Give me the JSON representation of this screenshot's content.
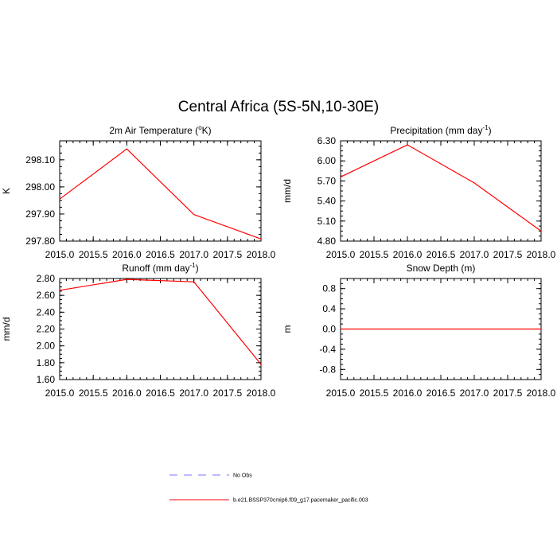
{
  "title": "Central Africa (5S-5N,10-30E)",
  "chart_data": [
    {
      "type": "line",
      "title": "2m Air Temperature (°K)",
      "title_parts": [
        "2m Air Temperature (",
        "o",
        "K)"
      ],
      "ylabel": "K",
      "xlim": [
        2015.0,
        2018.0
      ],
      "ylim": [
        297.8,
        298.17
      ],
      "xticks": [
        "2015.0",
        "2015.5",
        "2016.0",
        "2016.5",
        "2017.0",
        "2017.5",
        "2018.0"
      ],
      "yticks": [
        "297.80",
        "297.90",
        "298.00",
        "298.10"
      ],
      "grid": false,
      "series": [
        {
          "name": "b.e21.BSSP370cmip6.f09_g17.pacemaker_pacific.003",
          "x": [
            2015,
            2016,
            2017,
            2018
          ],
          "y": [
            297.955,
            298.14,
            297.898,
            297.808
          ]
        }
      ]
    },
    {
      "type": "line",
      "title": "Precipitation (mm day-1)",
      "title_parts": [
        "Precipitation (mm day",
        "-1",
        ")"
      ],
      "ylabel": "mm/d",
      "xlim": [
        2015.0,
        2018.0
      ],
      "ylim": [
        4.8,
        6.3
      ],
      "xticks": [
        "2015.0",
        "2015.5",
        "2016.0",
        "2016.5",
        "2017.0",
        "2017.5",
        "2018.0"
      ],
      "yticks": [
        "4.80",
        "5.10",
        "5.40",
        "5.70",
        "6.00",
        "6.30"
      ],
      "grid": false,
      "series": [
        {
          "name": "b.e21.BSSP370cmip6.f09_g17.pacemaker_pacific.003",
          "x": [
            2015,
            2016,
            2017,
            2018
          ],
          "y": [
            5.76,
            6.24,
            5.67,
            4.95
          ]
        }
      ]
    },
    {
      "type": "line",
      "title": "Runoff (mm day-1)",
      "title_parts": [
        "Runoff (mm day",
        "-1",
        ")"
      ],
      "ylabel": "mm/d",
      "xlim": [
        2015.0,
        2018.0
      ],
      "ylim": [
        1.6,
        2.8
      ],
      "xticks": [
        "2015.0",
        "2015.5",
        "2016.0",
        "2016.5",
        "2017.0",
        "2017.5",
        "2018.0"
      ],
      "yticks": [
        "1.60",
        "1.80",
        "2.00",
        "2.20",
        "2.40",
        "2.60",
        "2.80"
      ],
      "grid": false,
      "series": [
        {
          "name": "b.e21.BSSP370cmip6.f09_g17.pacemaker_pacific.003",
          "x": [
            2015,
            2016,
            2017,
            2018
          ],
          "y": [
            2.66,
            2.79,
            2.76,
            1.78
          ]
        }
      ]
    },
    {
      "type": "line",
      "title": "Snow Depth (m)",
      "title_parts": [
        "Snow Depth (m)",
        "",
        ""
      ],
      "ylabel": "m",
      "xlim": [
        2015.0,
        2018.0
      ],
      "ylim": [
        -1.0,
        1.0
      ],
      "xticks": [
        "2015.0",
        "2015.5",
        "2016.0",
        "2016.5",
        "2017.0",
        "2017.5",
        "2018.0"
      ],
      "yticks": [
        "-0.8",
        "-0.4",
        "0.0",
        "0.4",
        "0.8"
      ],
      "grid": false,
      "series": [
        {
          "name": "b.e21.BSSP370cmip6.f09_g17.pacemaker_pacific.003",
          "x": [
            2015,
            2016,
            2017,
            2018
          ],
          "y": [
            0.0,
            0.0,
            0.0,
            0.0
          ]
        }
      ]
    }
  ],
  "legend": {
    "placement": "bottom",
    "entries": [
      {
        "label": "No Obs",
        "color": "#7777ff",
        "style": "dashed"
      },
      {
        "label": "b.e21.BSSP370cmip6.f09_g17.pacemaker_pacific.003",
        "color": "#ff0000",
        "style": "solid"
      }
    ]
  },
  "colors": {
    "series_line": "#ff0000",
    "axes": "#000000"
  }
}
